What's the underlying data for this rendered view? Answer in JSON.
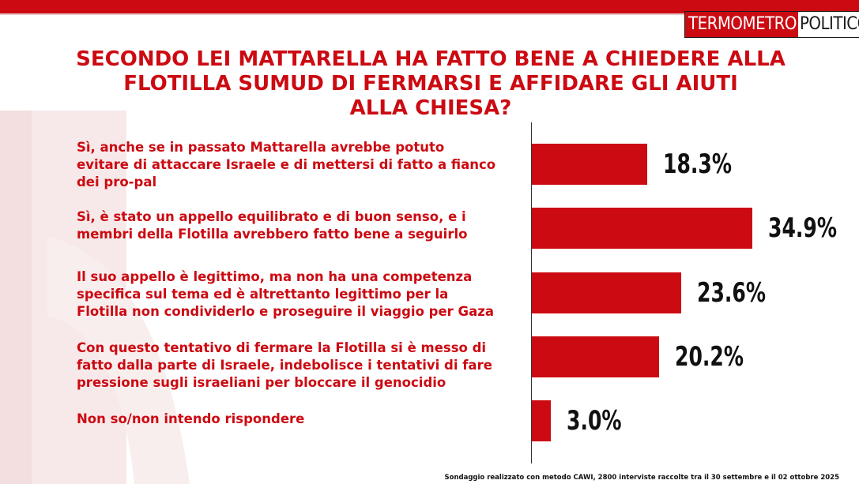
{
  "brand": {
    "logo_left": "TERMOMETRO",
    "logo_right": "POLITICO",
    "red": "#cc0a12"
  },
  "title_lines": [
    "SECONDO LEI MATTARELLA HA FATTO BENE A CHIEDERE ALLA",
    "FLOTILLA SUMUD DI FERMARSI E AFFIDARE GLI AIUTI",
    "ALLA CHIESA?"
  ],
  "footnote": "Sondaggio realizzato con metodo CAWI, 2800 interviste raccolte tra il 30 settembre e il 02 ottobre  2025",
  "chart_data": {
    "type": "bar",
    "orientation": "horizontal",
    "title": "SECONDO LEI MATTARELLA HA FATTO BENE A CHIEDERE ALLA FLOTILLA SUMUD DI FERMARSI E AFFIDARE GLI AIUTI ALLA CHIESA?",
    "categories": [
      "Sì, anche se in passato Mattarella avrebbe potuto evitare di attaccare Israele e di mettersi di fatto a fianco dei pro-pal",
      "Sì, è stato un appello equilibrato e di buon senso, e i membri della Flotilla avrebbero fatto bene a seguirlo",
      "Il suo appello è legittimo, ma non ha una competenza specifica sul tema ed è altrettanto legittimo per la Flotilla non condividerlo e proseguire il viaggio per Gaza",
      "Con questo tentativo di fermare la Flotilla si è messo di fatto dalla parte di Israele, indebolisce i tentativi di fare pressione sugli israeliani per bloccare il genocidio",
      "Non so/non intendo rispondere"
    ],
    "category_lines": [
      [
        "Sì, anche se in passato Mattarella avrebbe potuto",
        "evitare di attaccare Israele e di mettersi di fatto a fianco",
        "dei pro-pal"
      ],
      [
        "Sì, è stato un appello equilibrato e di buon senso, e i",
        "membri della Flotilla avrebbero fatto bene a seguirlo"
      ],
      [
        "Il suo appello è legittimo, ma non ha una competenza",
        "specifica sul tema ed è altrettanto legittimo per la",
        "Flotilla non condividerlo e proseguire il viaggio per Gaza"
      ],
      [
        "Con questo tentativo di fermare la Flotilla si è messo di",
        "fatto dalla parte di Israele, indebolisce i tentativi di fare",
        "pressione sugli israeliani per bloccare il genocidio"
      ],
      [
        "Non so/non intendo rispondere"
      ]
    ],
    "values": [
      18.3,
      34.9,
      23.6,
      20.2,
      3.0
    ],
    "data_labels": [
      "18.3%",
      "34.9%",
      "23.6%",
      "20.2%",
      "3.0%"
    ],
    "unit": "%",
    "bar_color": "#cc0a12",
    "grid": false,
    "legend": "none"
  }
}
